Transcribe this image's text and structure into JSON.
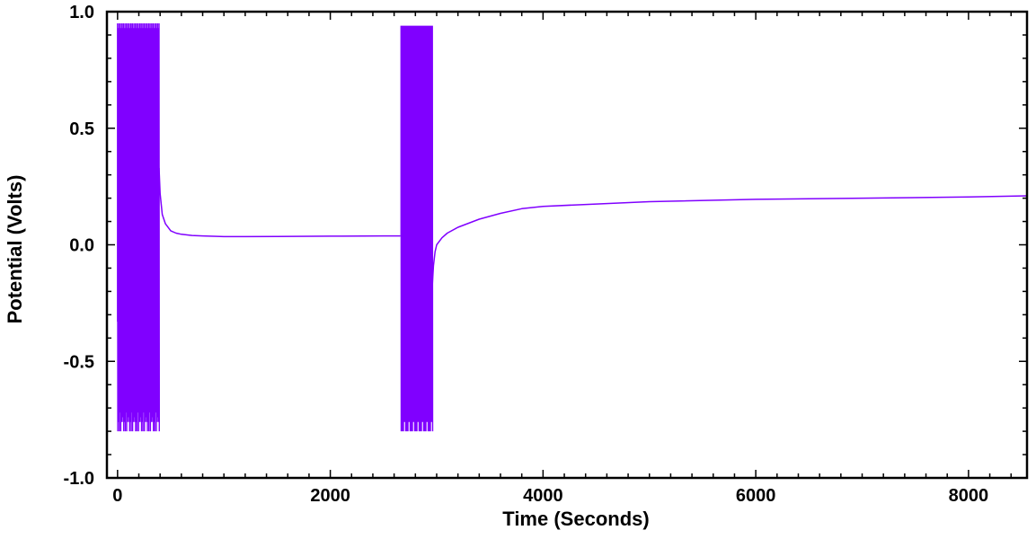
{
  "chart_data": {
    "type": "line",
    "title": "",
    "xlabel": "Time (Seconds)",
    "ylabel": "Potential (Volts)",
    "xlim": [
      -100,
      8550
    ],
    "ylim": [
      -1.0,
      1.0
    ],
    "xticks": [
      0,
      2000,
      4000,
      6000,
      8000
    ],
    "xtick_labels": [
      "0",
      "2000",
      "4000",
      "6000",
      "8000"
    ],
    "yticks": [
      1.0,
      0.5,
      0.0,
      -0.5,
      -1.0
    ],
    "ytick_labels": [
      "1.0",
      "0.5",
      "0.0",
      "-0.5",
      "-1.0"
    ],
    "grid": false,
    "legend": "none",
    "colors": {
      "series": "#8000ff",
      "axes": "#000000",
      "background": "#ffffff"
    },
    "series": [
      {
        "name": "Potential",
        "oscillation_bursts": [
          {
            "t_start": 0,
            "t_end": 390,
            "max": 0.95,
            "min": -0.8,
            "start_value": -0.33
          },
          {
            "t_start": 2665,
            "t_end": 2960,
            "max": 0.94,
            "min": -0.8,
            "start_value": 0.04
          }
        ],
        "x": [
          390,
          400,
          420,
          450,
          500,
          550,
          600,
          700,
          800,
          1000,
          1200,
          1500,
          2000,
          2500,
          2660,
          2960,
          2970,
          2985,
          3000,
          3050,
          3100,
          3200,
          3400,
          3600,
          3800,
          4000,
          4500,
          5000,
          6000,
          7000,
          8000,
          8550
        ],
        "y": [
          0.33,
          0.22,
          0.13,
          0.09,
          0.06,
          0.05,
          0.045,
          0.04,
          0.038,
          0.035,
          0.035,
          0.036,
          0.037,
          0.038,
          0.038,
          -0.17,
          -0.09,
          -0.03,
          0.0,
          0.03,
          0.05,
          0.075,
          0.11,
          0.135,
          0.155,
          0.165,
          0.175,
          0.185,
          0.195,
          0.2,
          0.205,
          0.21
        ]
      }
    ]
  }
}
